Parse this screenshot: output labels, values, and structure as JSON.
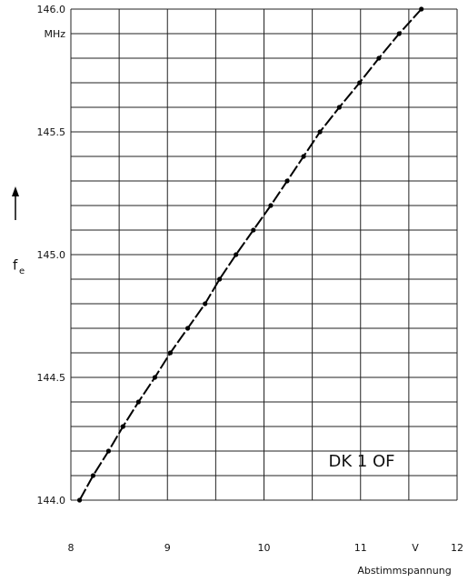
{
  "chart_data": {
    "type": "line",
    "x_label": "Abstimmspannung",
    "x_unit": "V",
    "y_label": "f",
    "y_label_sub": "e",
    "y_unit": "MHz",
    "annotation": "DK 1 OF",
    "x": [
      8.09,
      8.23,
      8.39,
      8.54,
      8.7,
      8.87,
      9.03,
      9.21,
      9.39,
      9.54,
      9.71,
      9.89,
      10.07,
      10.24,
      10.41,
      10.58,
      10.78,
      10.99,
      11.19,
      11.4,
      11.63
    ],
    "series": [
      {
        "color": "#000000",
        "values": [
          144.0,
          144.1,
          144.2,
          144.3,
          144.4,
          144.5,
          144.6,
          144.7,
          144.8,
          144.9,
          145.0,
          145.1,
          145.2,
          145.3,
          145.4,
          145.5,
          145.6,
          145.7,
          145.8,
          145.9,
          146.0
        ]
      }
    ],
    "xlim": [
      8,
      12
    ],
    "xticks": [
      8,
      9,
      10,
      11,
      12
    ],
    "xgrid": [
      8,
      8.5,
      9,
      9.5,
      10,
      10.5,
      11,
      11.5,
      12
    ],
    "ylim": [
      144,
      146
    ],
    "yticks": [
      {
        "value": 144,
        "label": "144.0"
      },
      {
        "value": 144.5,
        "label": "144.5"
      },
      {
        "value": 145,
        "label": "145.0"
      },
      {
        "value": 145.5,
        "label": "145.5"
      },
      {
        "value": 146,
        "label": "146.0"
      }
    ],
    "ygrid": [
      144,
      144.1,
      144.2,
      144.3,
      144.4,
      144.5,
      144.6,
      144.7,
      144.8,
      144.9,
      145,
      145.1,
      145.2,
      145.3,
      145.4,
      145.5,
      145.6,
      145.7,
      145.8,
      145.9,
      146
    ],
    "grid": true
  }
}
